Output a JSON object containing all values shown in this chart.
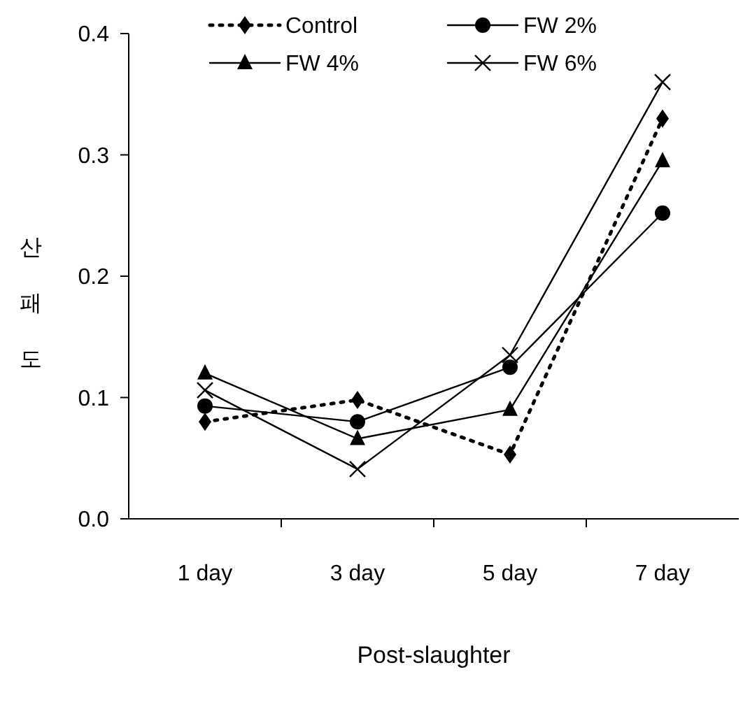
{
  "chart_data": {
    "type": "line",
    "xlabel": "Post-slaughter",
    "ylabel": "산패도",
    "categories": [
      "1 day",
      "3 day",
      "5 day",
      "7 day"
    ],
    "series": [
      {
        "name": "Control",
        "color": "#000000",
        "line_style": "dotted",
        "marker": "diamond",
        "values": [
          0.08,
          0.098,
          0.053,
          0.33
        ]
      },
      {
        "name": "FW 2%",
        "color": "#000000",
        "line_style": "solid",
        "marker": "circle",
        "values": [
          0.093,
          0.08,
          0.125,
          0.252
        ]
      },
      {
        "name": "FW 4%",
        "color": "#000000",
        "line_style": "solid",
        "marker": "triangle",
        "values": [
          0.12,
          0.066,
          0.09,
          0.295
        ]
      },
      {
        "name": "FW 6%",
        "color": "#000000",
        "line_style": "solid",
        "marker": "cross",
        "values": [
          0.106,
          0.041,
          0.135,
          0.36
        ]
      }
    ],
    "ylim": [
      0,
      0.4
    ],
    "yticks": [
      {
        "value": 0,
        "label": "0.0"
      },
      0.1,
      0.2,
      0.3,
      0.4
    ],
    "grid": false,
    "legend": "top"
  }
}
